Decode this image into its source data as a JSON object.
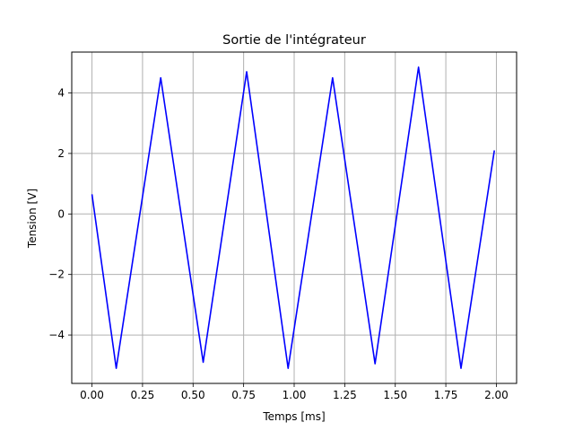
{
  "chart_data": {
    "type": "line",
    "title": "Sortie de l'intégrateur",
    "xlabel": "Temps [ms]",
    "ylabel": "Tension [V]",
    "xlim": [
      -0.1,
      2.1
    ],
    "ylim": [
      -5.6,
      5.35
    ],
    "xticks": [
      0.0,
      0.25,
      0.5,
      0.75,
      1.0,
      1.25,
      1.5,
      1.75,
      2.0
    ],
    "xtick_labels": [
      "0.00",
      "0.25",
      "0.50",
      "0.75",
      "1.00",
      "1.25",
      "1.50",
      "1.75",
      "2.00"
    ],
    "yticks": [
      -4,
      -2,
      0,
      2,
      4
    ],
    "ytick_labels": [
      "−4",
      "−2",
      "0",
      "2",
      "4"
    ],
    "grid": true,
    "series": [
      {
        "color": "#0000ff",
        "x": [
          0.0,
          0.12,
          0.34,
          0.55,
          0.765,
          0.97,
          1.19,
          1.4,
          1.615,
          1.825,
          1.99
        ],
        "y": [
          0.65,
          -5.1,
          4.5,
          -4.9,
          4.7,
          -5.1,
          4.5,
          -4.95,
          4.85,
          -5.1,
          2.1
        ]
      }
    ]
  }
}
